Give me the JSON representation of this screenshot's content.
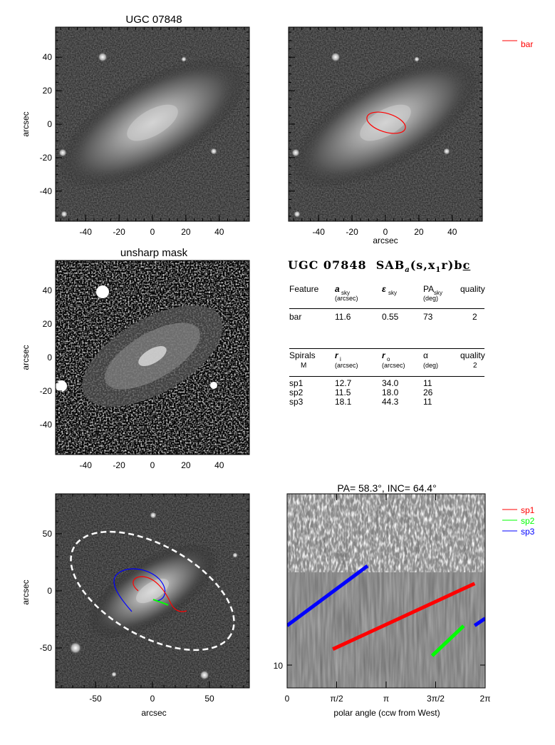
{
  "galaxy_name": "UGC 07848",
  "unsharp_title": "unsharp mask",
  "axis_label": "arcsec",
  "image_ticks": [
    "-40",
    "-20",
    "0",
    "20",
    "40"
  ],
  "deproj_ticks": [
    "-50",
    "0",
    "50"
  ],
  "legend_bar": "bar",
  "classification": "SAB",
  "class_sub": "a",
  "class_rest": "(s,x",
  "class_sub2": "1",
  "class_rest2": "r)b",
  "class_tail": "c",
  "bar_table": {
    "headers": [
      {
        "main": "Feature",
        "sub": ""
      },
      {
        "main": "a",
        "sub": "sky",
        "unit": "(arcsec)"
      },
      {
        "main": "ε",
        "sub": "sky",
        "unit": ""
      },
      {
        "main": "PA",
        "sub": "sky",
        "unit": "(deg)"
      },
      {
        "main": "quality",
        "sub": ""
      }
    ],
    "row": [
      "bar",
      "11.6",
      "0.55",
      "73",
      "2"
    ]
  },
  "spiral_table": {
    "headers": [
      {
        "main": "Spirals",
        "line2": "M"
      },
      {
        "main": "r",
        "sub": "i",
        "unit": "(arcsec)"
      },
      {
        "main": "r",
        "sub": "o",
        "unit": "(arcsec)"
      },
      {
        "main": "α",
        "sub": "",
        "unit": "(deg)"
      },
      {
        "main": "quality",
        "line2": "2"
      }
    ],
    "rows": [
      [
        "sp1",
        "12.7",
        "34.0",
        "11"
      ],
      [
        "sp2",
        "11.5",
        "18.0",
        "26"
      ],
      [
        "sp3",
        "18.1",
        "44.3",
        "11"
      ]
    ]
  },
  "polar_title": "PA=  58.3°, INC=  64.4°",
  "polar_xlabel": "polar angle (ccw from West)",
  "polar_xticks": [
    "0",
    "π/2",
    "π",
    "3π/2",
    "2π"
  ],
  "polar_ytick": "10",
  "legend_spirals": [
    {
      "name": "sp1",
      "color": "#ff0000"
    },
    {
      "name": "sp2",
      "color": "#00ff00"
    },
    {
      "name": "sp3",
      "color": "#0000ff"
    }
  ],
  "chart_data": [
    {
      "type": "image",
      "title": "UGC 07848",
      "ylabel": "arcsec",
      "xlim": [
        -58,
        58
      ],
      "ylim": [
        -58,
        58
      ]
    },
    {
      "type": "image",
      "xlabel": "arcsec",
      "legend": "bar",
      "xlim": [
        -58,
        58
      ],
      "ylim": [
        -58,
        58
      ],
      "overlay": {
        "name": "bar",
        "a_arcsec": 11.6,
        "ellipticity": 0.55,
        "pa_deg": 73,
        "color": "#ff0000"
      }
    },
    {
      "type": "image",
      "title": "unsharp mask",
      "ylabel": "arcsec",
      "xlim": [
        -58,
        58
      ],
      "ylim": [
        -58,
        58
      ]
    },
    {
      "type": "image",
      "xlabel": "arcsec",
      "ylabel": "arcsec",
      "xlim": [
        -85,
        85
      ],
      "ylim": [
        -85,
        85
      ]
    },
    {
      "type": "line",
      "title": "PA=  58.3°, INC=  64.4°",
      "xlabel": "polar angle (ccw from West)",
      "xlim": [
        0,
        6.2832
      ],
      "log_y": true,
      "series": [
        {
          "name": "sp1",
          "color": "#ff0000",
          "x": [
            1.45,
            5.95
          ],
          "y": [
            12.7,
            34.0
          ]
        },
        {
          "name": "sp2",
          "color": "#00ff00",
          "x": [
            4.6,
            5.6
          ],
          "y": [
            11.5,
            18.0
          ]
        },
        {
          "name": "sp3",
          "color": "#0000ff",
          "x": [
            0.0,
            2.55
          ],
          "y": [
            18.1,
            44.3
          ]
        }
      ]
    }
  ]
}
